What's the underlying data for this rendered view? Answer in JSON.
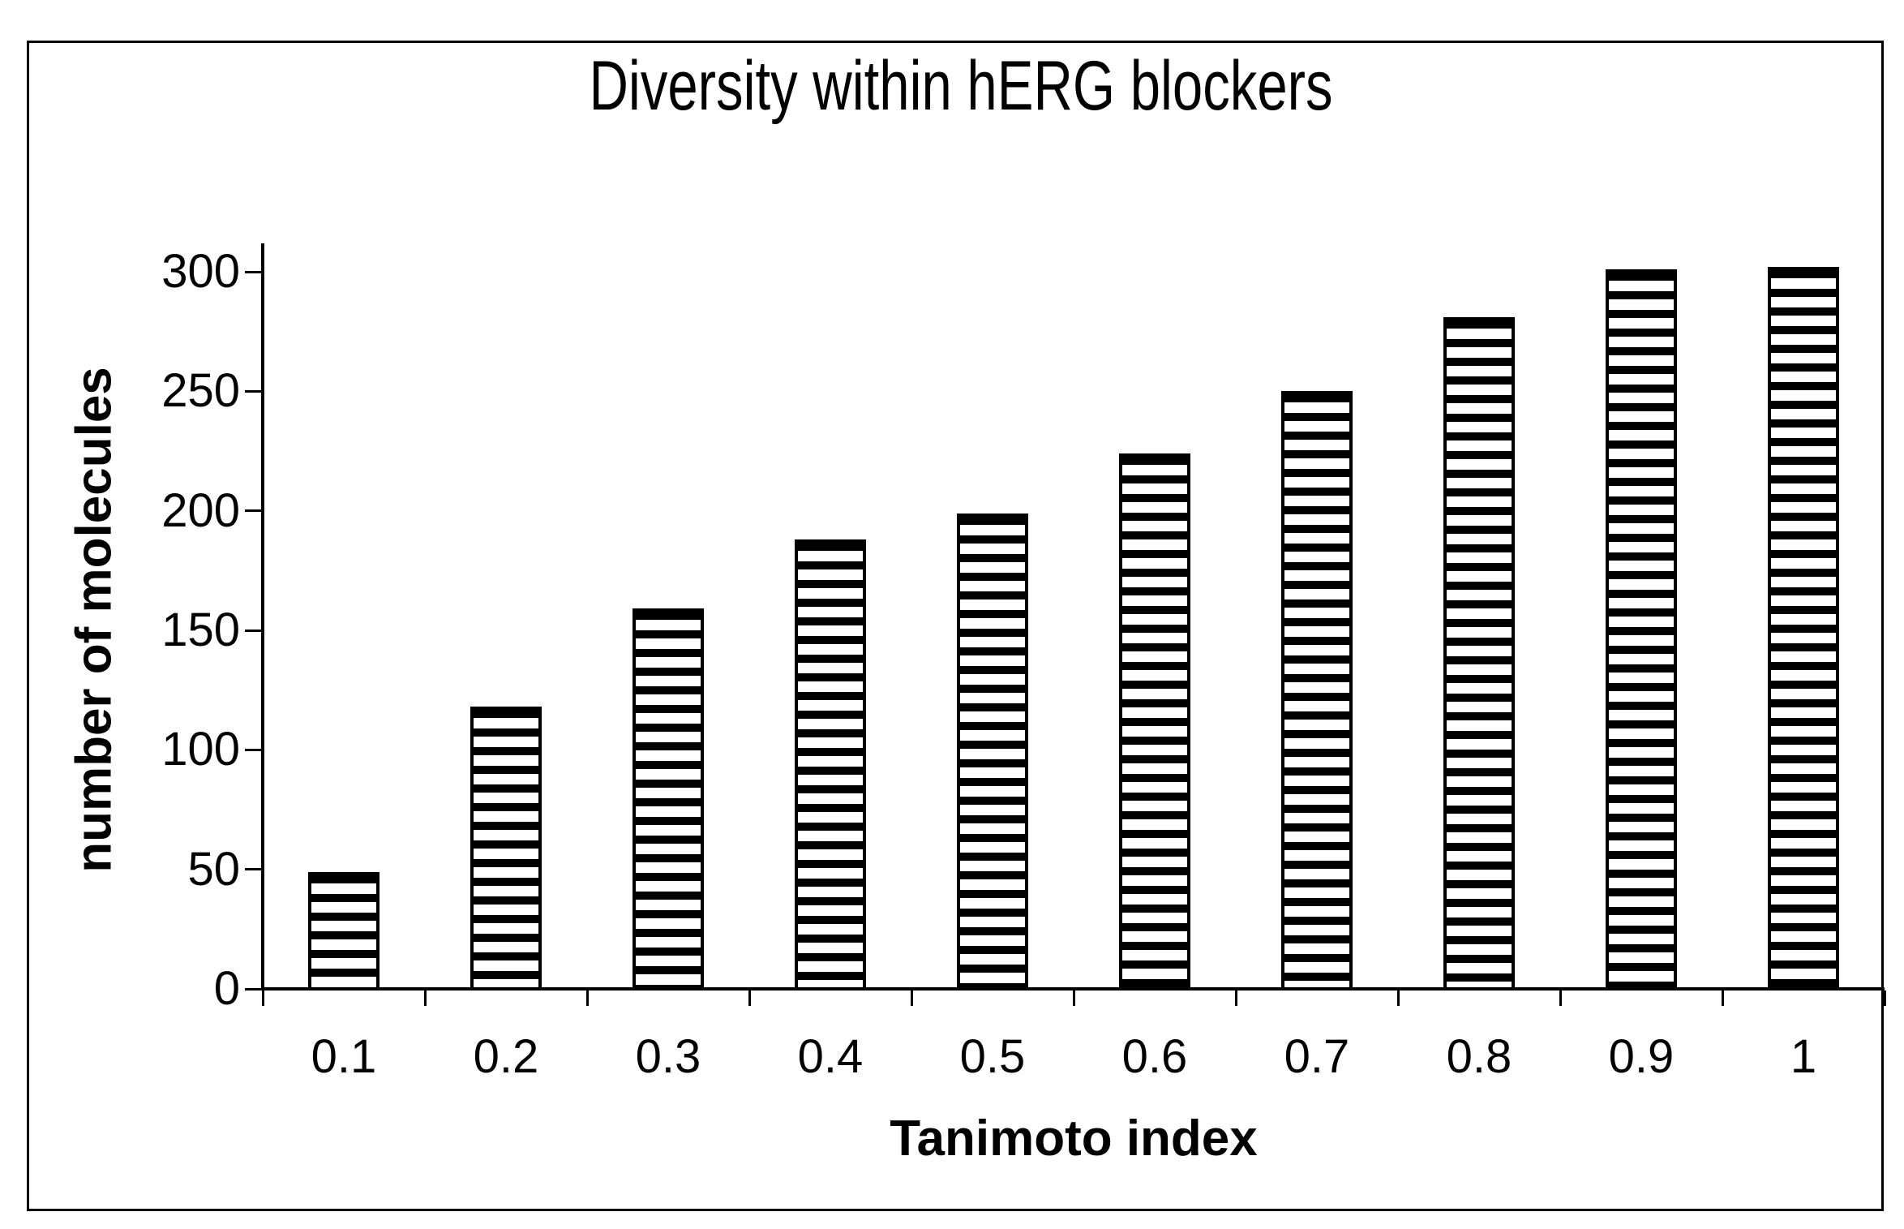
{
  "figure": {
    "background": "#ffffff",
    "border_color": "#000000"
  },
  "chart_data": {
    "type": "bar",
    "title": "Diversity within hERG blockers",
    "xlabel": "Tanimoto index",
    "ylabel": "number of molecules",
    "categories": [
      "0.1",
      "0.2",
      "0.3",
      "0.4",
      "0.5",
      "0.6",
      "0.7",
      "0.8",
      "0.9",
      "1"
    ],
    "values": [
      49,
      118,
      159,
      188,
      199,
      224,
      250,
      281,
      301,
      302
    ],
    "ylim": [
      0,
      300
    ],
    "yticks": [
      0,
      50,
      100,
      150,
      200,
      250,
      300
    ],
    "grid": false,
    "legend_position": "none",
    "bar_fill_pattern": "horizontal-stripes",
    "colors": {
      "stripe_dark": "#000000",
      "stripe_light": "#ffffff",
      "bar_outline": "#000000",
      "axis": "#000000",
      "text": "#000000"
    }
  }
}
